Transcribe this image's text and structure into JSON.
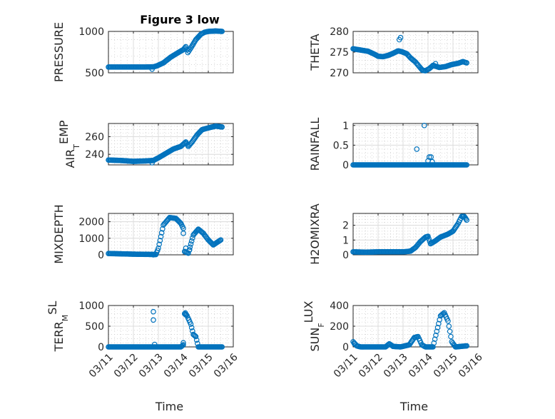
{
  "figure": {
    "title": "Figure 3 low"
  },
  "colors": {
    "marker": "#0072bd",
    "axis": "#262626",
    "grid": "#dcdcdc"
  },
  "chart_data": [
    {
      "type": "scatter",
      "id": "pressure",
      "title": "Figure 3 low",
      "ylabel": "PRESSURE",
      "ylabel_sub": "",
      "ylabel_rest": "",
      "xlabel": "",
      "xlim": [
        0,
        5
      ],
      "ylim": [
        500,
        1000
      ],
      "yticks": [
        500,
        1000
      ],
      "yticklabels": [
        "500",
        "1000"
      ],
      "xticks": [
        0,
        1,
        2,
        3,
        4,
        5
      ],
      "xticklabels": [
        "03/11",
        "03/12",
        "03/13",
        "03/14",
        "03/15",
        "03/16"
      ],
      "show_xticklabels": false,
      "grid": true,
      "keys": [
        [
          0.0,
          570
        ],
        [
          0.5,
          570
        ],
        [
          1.0,
          570
        ],
        [
          1.5,
          570
        ],
        [
          1.8,
          572
        ],
        [
          1.95,
          585
        ],
        [
          2.2,
          620
        ],
        [
          2.5,
          690
        ],
        [
          2.8,
          745
        ],
        [
          3.0,
          780
        ],
        [
          3.1,
          815
        ],
        [
          3.18,
          745
        ],
        [
          3.3,
          800
        ],
        [
          3.5,
          900
        ],
        [
          3.7,
          965
        ],
        [
          3.85,
          990
        ],
        [
          4.0,
          1000
        ],
        [
          4.3,
          1005
        ],
        [
          4.55,
          1000
        ]
      ],
      "outliers": [
        [
          1.75,
          545
        ]
      ]
    },
    {
      "type": "scatter",
      "id": "theta",
      "ylabel": "THETA",
      "ylabel_sub": "",
      "ylabel_rest": "",
      "xlabel": "",
      "xlim": [
        0,
        5
      ],
      "ylim": [
        270,
        280
      ],
      "yticks": [
        270,
        275,
        280
      ],
      "yticklabels": [
        "270",
        "275",
        "280"
      ],
      "xticks": [
        0,
        1,
        2,
        3,
        4,
        5
      ],
      "xticklabels": [
        "03/11",
        "03/12",
        "03/13",
        "03/14",
        "03/15",
        "03/16"
      ],
      "show_xticklabels": false,
      "grid": true,
      "keys": [
        [
          0.0,
          275.8
        ],
        [
          0.3,
          275.5
        ],
        [
          0.6,
          275.2
        ],
        [
          0.85,
          274.5
        ],
        [
          1.0,
          274.0
        ],
        [
          1.2,
          273.9
        ],
        [
          1.4,
          274.2
        ],
        [
          1.6,
          274.7
        ],
        [
          1.8,
          275.3
        ],
        [
          1.95,
          275.1
        ],
        [
          2.15,
          274.6
        ],
        [
          2.3,
          273.6
        ],
        [
          2.5,
          272.6
        ],
        [
          2.65,
          271.5
        ],
        [
          2.78,
          270.6
        ],
        [
          2.9,
          270.5
        ],
        [
          3.05,
          271.0
        ],
        [
          3.2,
          271.8
        ],
        [
          3.45,
          271.3
        ],
        [
          3.7,
          271.5
        ],
        [
          3.95,
          272.0
        ],
        [
          4.2,
          272.3
        ],
        [
          4.4,
          272.7
        ],
        [
          4.55,
          272.4
        ]
      ],
      "outliers": [
        [
          1.85,
          278.0
        ],
        [
          1.9,
          278.5
        ],
        [
          3.3,
          272.2
        ]
      ]
    },
    {
      "type": "scatter",
      "id": "air_temp",
      "ylabel": "AIR",
      "ylabel_sub": "T",
      "ylabel_rest": "EMP",
      "xlabel": "",
      "xlim": [
        0,
        5
      ],
      "ylim": [
        228,
        275
      ],
      "yticks": [
        240,
        260
      ],
      "yticklabels": [
        "240",
        "260"
      ],
      "xticks": [
        0,
        1,
        2,
        3,
        4,
        5
      ],
      "xticklabels": [
        "03/11",
        "03/12",
        "03/13",
        "03/14",
        "03/15",
        "03/16"
      ],
      "show_xticklabels": false,
      "grid": true,
      "keys": [
        [
          0.0,
          233.5
        ],
        [
          0.5,
          233
        ],
        [
          1.0,
          232
        ],
        [
          1.5,
          232.5
        ],
        [
          1.8,
          233
        ],
        [
          2.0,
          236
        ],
        [
          2.3,
          241
        ],
        [
          2.6,
          246
        ],
        [
          2.9,
          249
        ],
        [
          3.1,
          254
        ],
        [
          3.2,
          249
        ],
        [
          3.35,
          254
        ],
        [
          3.55,
          262
        ],
        [
          3.75,
          268
        ],
        [
          4.0,
          270
        ],
        [
          4.3,
          272
        ],
        [
          4.55,
          271
        ]
      ],
      "outliers": [
        [
          1.75,
          230.5
        ]
      ]
    },
    {
      "type": "scatter",
      "id": "rainfall",
      "ylabel": "RAINFALL",
      "ylabel_sub": "",
      "ylabel_rest": "",
      "xlabel": "",
      "xlim": [
        0,
        5
      ],
      "ylim": [
        0,
        1.05
      ],
      "yticks": [
        0,
        0.5,
        1
      ],
      "yticklabels": [
        "0",
        "0.5",
        "1"
      ],
      "xticks": [
        0,
        1,
        2,
        3,
        4,
        5
      ],
      "xticklabels": [
        "03/11",
        "03/12",
        "03/13",
        "03/14",
        "03/15",
        "03/16"
      ],
      "show_xticklabels": false,
      "grid": true,
      "keys": [
        [
          0.0,
          0
        ],
        [
          4.55,
          0
        ]
      ],
      "outliers": [
        [
          2.55,
          0.4
        ],
        [
          2.85,
          1.0
        ],
        [
          3.05,
          0.2
        ],
        [
          3.12,
          0.2
        ],
        [
          3.0,
          0.1
        ],
        [
          3.17,
          0.08
        ]
      ]
    },
    {
      "type": "scatter",
      "id": "mixdepth",
      "ylabel": "MIXDEPTH",
      "ylabel_sub": "",
      "ylabel_rest": "",
      "xlabel": "",
      "xlim": [
        0,
        5
      ],
      "ylim": [
        0,
        2500
      ],
      "yticks": [
        0,
        1000,
        2000
      ],
      "yticklabels": [
        "0",
        "1000",
        "2000"
      ],
      "xticks": [
        0,
        1,
        2,
        3,
        4,
        5
      ],
      "xticklabels": [
        "03/11",
        "03/12",
        "03/13",
        "03/14",
        "03/15",
        "03/16"
      ],
      "show_xticklabels": false,
      "grid": true,
      "keys": [
        [
          0.0,
          80
        ],
        [
          0.5,
          60
        ],
        [
          1.0,
          40
        ],
        [
          1.5,
          30
        ],
        [
          1.9,
          20
        ],
        [
          2.0,
          400
        ],
        [
          2.2,
          1800
        ],
        [
          2.45,
          2250
        ],
        [
          2.7,
          2200
        ],
        [
          2.9,
          1900
        ],
        [
          3.0,
          1600
        ],
        [
          3.05,
          200
        ],
        [
          3.2,
          100
        ],
        [
          3.4,
          1200
        ],
        [
          3.6,
          1550
        ],
        [
          3.8,
          1300
        ],
        [
          4.0,
          900
        ],
        [
          4.2,
          600
        ],
        [
          4.4,
          800
        ],
        [
          4.5,
          900
        ]
      ],
      "outliers": [
        [
          1.8,
          0
        ],
        [
          3.1,
          400
        ],
        [
          3.25,
          300
        ],
        [
          3.0,
          1300
        ]
      ]
    },
    {
      "type": "scatter",
      "id": "h2omixra",
      "ylabel": "H2OMIXRA",
      "ylabel_sub": "",
      "ylabel_rest": "",
      "xlabel": "",
      "xlim": [
        0,
        5
      ],
      "ylim": [
        0,
        2.8
      ],
      "yticks": [
        0,
        1,
        2
      ],
      "yticklabels": [
        "0",
        "1",
        "2"
      ],
      "xticks": [
        0,
        1,
        2,
        3,
        4,
        5
      ],
      "xticklabels": [
        "03/11",
        "03/12",
        "03/13",
        "03/14",
        "03/15",
        "03/16"
      ],
      "show_xticklabels": false,
      "grid": true,
      "keys": [
        [
          0.0,
          0.2
        ],
        [
          0.5,
          0.18
        ],
        [
          1.0,
          0.2
        ],
        [
          1.5,
          0.2
        ],
        [
          2.0,
          0.2
        ],
        [
          2.3,
          0.25
        ],
        [
          2.5,
          0.5
        ],
        [
          2.7,
          0.9
        ],
        [
          2.9,
          1.2
        ],
        [
          3.0,
          1.25
        ],
        [
          3.1,
          0.75
        ],
        [
          3.3,
          0.95
        ],
        [
          3.5,
          1.2
        ],
        [
          3.8,
          1.4
        ],
        [
          4.0,
          1.6
        ],
        [
          4.2,
          2.1
        ],
        [
          4.35,
          2.6
        ],
        [
          4.45,
          2.6
        ],
        [
          4.55,
          2.35
        ]
      ],
      "outliers": []
    },
    {
      "type": "scatter",
      "id": "terr_msl",
      "ylabel": "TERR",
      "ylabel_sub": "M",
      "ylabel_rest": "SL",
      "xlabel": "Time",
      "xlim": [
        0,
        5
      ],
      "ylim": [
        0,
        1000
      ],
      "yticks": [
        0,
        500,
        1000
      ],
      "yticklabels": [
        "0",
        "500",
        "1000"
      ],
      "xticks": [
        0,
        1,
        2,
        3,
        4,
        5
      ],
      "xticklabels": [
        "03/11",
        "03/12",
        "03/13",
        "03/14",
        "03/15",
        "03/16"
      ],
      "show_xticklabels": true,
      "grid": true,
      "keys": [
        [
          0.0,
          0
        ],
        [
          2.9,
          0
        ],
        [
          3.0,
          50
        ],
        [
          3.05,
          800
        ],
        [
          3.15,
          750
        ],
        [
          3.3,
          550
        ],
        [
          3.4,
          300
        ],
        [
          3.5,
          250
        ],
        [
          3.6,
          0
        ],
        [
          4.55,
          0
        ]
      ],
      "outliers": [
        [
          1.8,
          850
        ],
        [
          1.8,
          650
        ],
        [
          1.85,
          60
        ],
        [
          3.0,
          100
        ],
        [
          3.08,
          820
        ],
        [
          3.12,
          780
        ]
      ]
    },
    {
      "type": "scatter",
      "id": "sun_flux",
      "ylabel": "SUN",
      "ylabel_sub": "F",
      "ylabel_rest": "LUX",
      "xlabel": "Time",
      "xlim": [
        0,
        5
      ],
      "ylim": [
        0,
        400
      ],
      "yticks": [
        0,
        200,
        400
      ],
      "yticklabels": [
        "0",
        "200",
        "400"
      ],
      "xticks": [
        0,
        1,
        2,
        3,
        4,
        5
      ],
      "xticklabels": [
        "03/11",
        "03/12",
        "03/13",
        "03/14",
        "03/15",
        "03/16"
      ],
      "show_xticklabels": true,
      "grid": true,
      "keys": [
        [
          0.0,
          50
        ],
        [
          0.15,
          10
        ],
        [
          0.3,
          0
        ],
        [
          1.3,
          0
        ],
        [
          1.45,
          30
        ],
        [
          1.6,
          5
        ],
        [
          1.9,
          0
        ],
        [
          2.25,
          20
        ],
        [
          2.45,
          90
        ],
        [
          2.6,
          100
        ],
        [
          2.75,
          20
        ],
        [
          2.9,
          0
        ],
        [
          3.2,
          0
        ],
        [
          3.35,
          150
        ],
        [
          3.5,
          300
        ],
        [
          3.65,
          330
        ],
        [
          3.8,
          250
        ],
        [
          3.95,
          50
        ],
        [
          4.1,
          0
        ],
        [
          4.55,
          10
        ]
      ],
      "outliers": [
        [
          0.05,
          30
        ]
      ]
    }
  ]
}
